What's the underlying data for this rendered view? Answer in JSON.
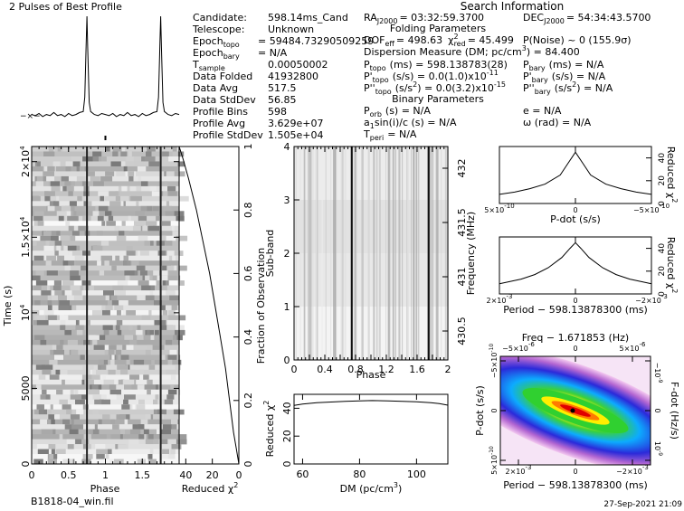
{
  "title": "2 Pulses of Best Profile",
  "search_title": "Search Information",
  "footer": {
    "filename": "B1818-04_win.fil",
    "timestamp": "27-Sep-2021 21:09"
  },
  "info_left": [
    {
      "label": "Candidate:",
      "value": "598.14ms_Cand"
    },
    {
      "label": "Telescope:",
      "value": "Unknown"
    },
    {
      "label": "Epoch",
      "sub": "topo",
      "value": "= 59484.73290509259"
    },
    {
      "label": "Epoch",
      "sub": "bary",
      "value": "= N/A"
    },
    {
      "label": "T",
      "sub": "sample",
      "value": "0.00050002"
    },
    {
      "label": "Data Folded",
      "value": "41932800"
    },
    {
      "label": "Data Avg",
      "value": "517.5"
    },
    {
      "label": "Data StdDev",
      "value": "56.85"
    },
    {
      "label": "Profile Bins",
      "value": "598"
    },
    {
      "label": "Profile Avg",
      "value": "3.629e+07"
    },
    {
      "label": "Profile StdDev",
      "value": "1.505e+04"
    }
  ],
  "search": {
    "ra": "RA",
    "ra_sub": "J2000",
    "ra_value": "= 03:32:59.3700",
    "dec": "DEC",
    "dec_sub": "J2000",
    "dec_value": "= 54:34:43.5700",
    "folding_title": "Folding Parameters",
    "dof": "DOF",
    "dof_sub": "eff",
    "dof_value": "= 498.63",
    "chi": "χ",
    "chi_sup": "2",
    "chi_sub": "red",
    "chi_value": "= 45.499",
    "pnoise": "P(Noise) ~ 0    (155.9σ)",
    "dm_line": "Dispersion Measure (DM; pc/cm",
    "dm_sup": "3",
    "dm_value": ") = 84.400",
    "ptopo": "P",
    "ptopo_sub": "topo",
    "ptopo_value": "(ms)  =  598.138783(28)",
    "pbary": "P",
    "pbary_sub": "bary",
    "pbary_value": "(ms) = N/A",
    "pdtopo": "P'",
    "pdtopo_sub": "topo",
    "pdtopo_value": "(s/s) = 0.0(1.0)x10",
    "pdtopo_exp": "-11",
    "pdbary": "P'",
    "pdbary_sub": "bary",
    "pdbary_value": "(s/s) = N/A",
    "pddtopo": "P''",
    "pddtopo_sub": "topo",
    "pddtopo_value": "(s/s",
    "pddtopo_sup": "2",
    "pddtopo_value2": ") = 0.0(3.2)x10",
    "pddtopo_exp": "-15",
    "pddbary": "P''",
    "pddbary_sub": "bary",
    "pddbary_value": "(s/s",
    "pddbary_sup": "2",
    "pddbary_value2": ") = N/A",
    "binary_title": "Binary Parameters",
    "porb": "P",
    "porb_sub": "orb",
    "porb_value": "(s) = N/A",
    "ecc": "e = N/A",
    "a1": "a",
    "a1_sub": "1",
    "a1_value": "sin(i)/c (s) = N/A",
    "omega": "ω (rad) = N/A",
    "tperi": "T",
    "tperi_sub": "peri",
    "tperi_value": "= N/A"
  },
  "chart_data": [
    {
      "type": "line",
      "name": "profile",
      "title": "2 Pulses of Best Profile",
      "x": [
        0,
        0.05,
        0.1,
        0.15,
        0.2,
        0.25,
        0.3,
        0.35,
        0.4,
        0.45,
        0.5,
        0.55,
        0.6,
        0.65,
        0.7,
        0.72,
        0.74,
        0.75,
        0.76,
        0.78,
        0.8,
        0.85,
        0.9,
        0.95,
        1.0,
        1.05,
        1.1,
        1.15,
        1.2,
        1.25,
        1.3,
        1.35,
        1.4,
        1.45,
        1.5,
        1.55,
        1.6,
        1.65,
        1.7,
        1.72,
        1.74,
        1.75,
        1.76,
        1.78,
        1.8,
        1.85,
        1.9,
        1.95,
        2.0
      ],
      "y": [
        0.03,
        0.02,
        0.04,
        0.01,
        0.03,
        0.02,
        0.05,
        0.02,
        0.03,
        0.01,
        0.04,
        0.02,
        0.03,
        0.05,
        0.06,
        0.2,
        0.75,
        1.0,
        0.7,
        0.15,
        0.06,
        0.03,
        0.02,
        0.04,
        0.03,
        0.02,
        0.04,
        0.01,
        0.03,
        0.02,
        0.05,
        0.02,
        0.03,
        0.01,
        0.04,
        0.02,
        0.03,
        0.05,
        0.06,
        0.2,
        0.75,
        1.0,
        0.7,
        0.15,
        0.06,
        0.03,
        0.02,
        0.04,
        0.03
      ],
      "xlim": [
        0,
        2
      ]
    },
    {
      "type": "heatmap",
      "name": "time-phase",
      "xlabel": "Phase",
      "ylabel": "Time (s)",
      "xticks": [
        "0",
        "0.5",
        "1",
        "1.5"
      ],
      "yticks": [
        "0",
        "5000",
        "10",
        "1.5×10",
        "2×10"
      ],
      "ytick_exp": "4",
      "xlim": [
        0,
        2
      ],
      "ylim": [
        0,
        21000
      ],
      "pulse_phases": [
        0.75,
        1.75
      ]
    },
    {
      "type": "line",
      "name": "reduced-chi2-vs-time",
      "xlabel": "Reduced χ",
      "xlabel_sup": "2",
      "ylabel": "Fraction of Observation",
      "xticks": [
        "40",
        "20",
        "0"
      ],
      "yticks": [
        "0",
        "0.2",
        "0.4",
        "0.6",
        "0.8",
        "1"
      ],
      "xlim": [
        45,
        0
      ],
      "ylim": [
        0,
        1
      ],
      "points": [
        [
          0,
          0
        ],
        [
          2,
          0.05
        ],
        [
          4,
          0.1
        ],
        [
          7,
          0.2
        ],
        [
          10,
          0.3
        ],
        [
          14,
          0.4
        ],
        [
          18,
          0.5
        ],
        [
          22,
          0.6
        ],
        [
          27,
          0.7
        ],
        [
          32,
          0.8
        ],
        [
          38,
          0.9
        ],
        [
          42,
          0.96
        ],
        [
          45,
          1.0
        ]
      ]
    },
    {
      "type": "heatmap",
      "name": "subband-phase",
      "xlabel": "Phase",
      "ylabel": "Sub-band",
      "ylabel_right": "Frequency (MHz)",
      "xticks": [
        "0",
        "0.2",
        "0.4",
        "0.6",
        "0.8",
        "1",
        "1.2",
        "1.4",
        "1.6",
        "1.8",
        "2"
      ],
      "yticks": [
        "0",
        "1",
        "2",
        "3",
        "4"
      ],
      "freq_ticks": [
        "430.5",
        "431",
        "431.5",
        "432"
      ],
      "xlim": [
        0,
        2
      ],
      "ylim": [
        0,
        4
      ],
      "pulse_phases": [
        0.75,
        1.75
      ]
    },
    {
      "type": "line",
      "name": "chi2-vs-dm",
      "xlabel": "DM (pc/cm",
      "xlabel_sup": "3",
      "xlabel_end": ")",
      "ylabel": "Reduced χ",
      "ylabel_sup": "2",
      "xticks": [
        "60",
        "80",
        "100"
      ],
      "yticks": [
        "0",
        "20",
        "40"
      ],
      "xlim": [
        57,
        111
      ],
      "ylim": [
        0,
        50
      ],
      "x": [
        57,
        60,
        65,
        70,
        75,
        80,
        84.4,
        90,
        95,
        100,
        105,
        108,
        111
      ],
      "y": [
        42,
        43,
        44,
        44.5,
        45,
        45.3,
        45.5,
        45.3,
        45,
        44.6,
        44,
        43.3,
        42.2
      ]
    },
    {
      "type": "line",
      "name": "chi2-vs-pdot",
      "xlabel": "P-dot (s/s)",
      "ylabel": "Reduced χ",
      "ylabel_sup": "2",
      "xticks": [
        "5×10",
        "0",
        "−5×10"
      ],
      "xtick_exp": [
        "-10",
        "",
        "-10"
      ],
      "yticks": [
        "0",
        "20",
        "40"
      ],
      "xlim": [
        5e-10,
        -5e-10
      ],
      "ylim": [
        0,
        50
      ],
      "x": [
        5e-10,
        4e-10,
        3e-10,
        2e-10,
        1e-10,
        5e-11,
        0,
        -5e-11,
        -1e-10,
        -2e-10,
        -3e-10,
        -4e-10,
        -5e-10
      ],
      "y": [
        8,
        10,
        13,
        17,
        25,
        35,
        45,
        35,
        25,
        17,
        13,
        10,
        8
      ]
    },
    {
      "type": "line",
      "name": "chi2-vs-period",
      "xlabel": "Period − 598.13878300 (ms)",
      "ylabel": "Reduced χ",
      "ylabel_sup": "2",
      "xticks": [
        "2×10",
        "0",
        "−2×10"
      ],
      "xtick_exp": [
        "-3",
        "",
        "-3"
      ],
      "yticks": [
        "0",
        "20",
        "40"
      ],
      "xlim": [
        0.0028,
        -0.0028
      ],
      "ylim": [
        0,
        50
      ],
      "x": [
        0.0028,
        0.002,
        0.0015,
        0.001,
        0.0005,
        0.0002,
        0,
        -0.0002,
        -0.0005,
        -0.001,
        -0.0015,
        -0.002,
        -0.0028
      ],
      "y": [
        9,
        13,
        17,
        23,
        32,
        40,
        45,
        40,
        32,
        23,
        17,
        13,
        9
      ]
    },
    {
      "type": "heatmap",
      "name": "pdot-period-plane",
      "title": "Freq − 1.671853 (Hz)",
      "xlabel": "Period − 598.13878300 (ms)",
      "ylabel": "P-dot (s/s)",
      "ylabel_right": "F-dot (Hz/s)",
      "xticks": [
        "2×10",
        "0",
        "−2×10"
      ],
      "xtick_exp": [
        "-3",
        "",
        "-3"
      ],
      "top_ticks": [
        "−5×10",
        "0",
        "5×10"
      ],
      "top_exp": [
        "-6",
        "",
        "-6"
      ],
      "yticks": [
        "5×10",
        "0",
        "−5×10"
      ],
      "ytick_exp": [
        "-10",
        "",
        "-10"
      ],
      "right_ticks": [
        "10",
        "0",
        "−10"
      ],
      "right_exp": [
        "-9",
        "",
        "-9"
      ],
      "best": [
        0,
        0
      ]
    }
  ]
}
